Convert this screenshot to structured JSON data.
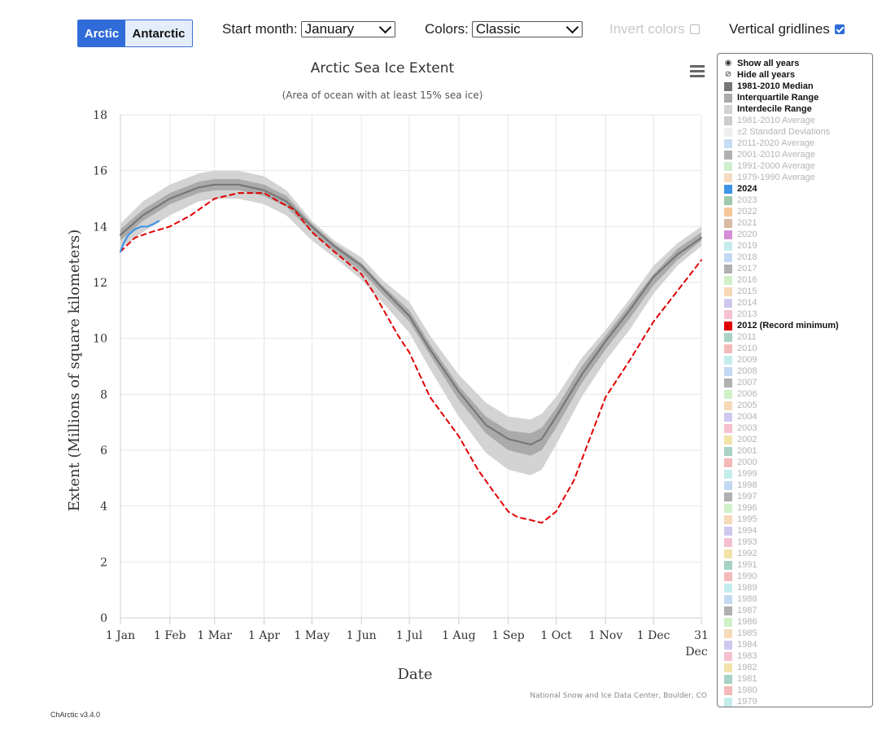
{
  "toolbar": {
    "region_buttons": [
      {
        "label": "Arctic",
        "active": true
      },
      {
        "label": "Antarctic",
        "active": false
      }
    ],
    "start_month_label": "Start month:",
    "start_month_value": "January",
    "colors_label": "Colors:",
    "colors_value": "Classic",
    "invert_label": "Invert colors",
    "invert_checked": false,
    "gridlines_label": "Vertical gridlines",
    "gridlines_checked": true
  },
  "legend": {
    "actions": [
      {
        "label": "Show all years",
        "icon": "eye-icon"
      },
      {
        "label": "Hide all years",
        "icon": "eye-slash-icon"
      }
    ],
    "items": [
      {
        "label": "1981-2010 Median",
        "color": "#777777",
        "active": true
      },
      {
        "label": "Interquartile Range",
        "color": "#aaaaaa",
        "active": true
      },
      {
        "label": "Interdecile Range",
        "color": "#d3d3d3",
        "active": true
      },
      {
        "label": "1981-2010 Average",
        "color": "#cccccc",
        "active": false
      },
      {
        "label": "±2 Standard Deviations",
        "color": "#eeeeee",
        "active": false
      },
      {
        "label": "2011-2020 Average",
        "color": "#c6dcf4",
        "active": false
      },
      {
        "label": "2001-2010 Average",
        "color": "#b0b0b0",
        "active": false
      },
      {
        "label": "1991-2000 Average",
        "color": "#cdeecd",
        "active": false
      },
      {
        "label": "1979-1990 Average",
        "color": "#f6dcc0",
        "active": false
      },
      {
        "label": "2024",
        "color": "#3f93e8",
        "active": true
      },
      {
        "label": "2023",
        "color": "#9ec9ac",
        "active": false
      },
      {
        "label": "2022",
        "color": "#f7c79a",
        "active": false
      },
      {
        "label": "2021",
        "color": "#d9b8a5",
        "active": false
      },
      {
        "label": "2020",
        "color": "#d58fd6",
        "active": false
      },
      {
        "label": "2019",
        "color": "#c5ecec",
        "active": false
      },
      {
        "label": "2018",
        "color": "#c3d9f2",
        "active": false
      },
      {
        "label": "2017",
        "color": "#b0b0b0",
        "active": false
      },
      {
        "label": "2016",
        "color": "#d0f0c8",
        "active": false
      },
      {
        "label": "2015",
        "color": "#f6d9b8",
        "active": false
      },
      {
        "label": "2014",
        "color": "#cfc9ef",
        "active": false
      },
      {
        "label": "2013",
        "color": "#f5c1cf",
        "active": false
      },
      {
        "label": "2012 (Record minimum)",
        "color": "#e00000",
        "active": true
      },
      {
        "label": "2011",
        "color": "#a8d2c4",
        "active": false
      },
      {
        "label": "2010",
        "color": "#f4b9b9",
        "active": false
      },
      {
        "label": "2009",
        "color": "#c5ecec",
        "active": false
      },
      {
        "label": "2008",
        "color": "#c3d9f2",
        "active": false
      },
      {
        "label": "2007",
        "color": "#b0b0b0",
        "active": false
      },
      {
        "label": "2006",
        "color": "#d0f0c8",
        "active": false
      },
      {
        "label": "2005",
        "color": "#f6d9b8",
        "active": false
      },
      {
        "label": "2004",
        "color": "#cfc9ef",
        "active": false
      },
      {
        "label": "2003",
        "color": "#f5c1cf",
        "active": false
      },
      {
        "label": "2002",
        "color": "#f2e3a8",
        "active": false
      },
      {
        "label": "2001",
        "color": "#a8d2c4",
        "active": false
      },
      {
        "label": "2000",
        "color": "#f4b9b9",
        "active": false
      },
      {
        "label": "1999",
        "color": "#c5ecec",
        "active": false
      },
      {
        "label": "1998",
        "color": "#c3d9f2",
        "active": false
      },
      {
        "label": "1997",
        "color": "#b0b0b0",
        "active": false
      },
      {
        "label": "1996",
        "color": "#d0f0c8",
        "active": false
      },
      {
        "label": "1995",
        "color": "#f6d9b8",
        "active": false
      },
      {
        "label": "1994",
        "color": "#cfc9ef",
        "active": false
      },
      {
        "label": "1993",
        "color": "#f5c1cf",
        "active": false
      },
      {
        "label": "1992",
        "color": "#f2e3a8",
        "active": false
      },
      {
        "label": "1991",
        "color": "#a8d2c4",
        "active": false
      },
      {
        "label": "1990",
        "color": "#f4b9b9",
        "active": false
      },
      {
        "label": "1989",
        "color": "#c5ecec",
        "active": false
      },
      {
        "label": "1988",
        "color": "#c3d9f2",
        "active": false
      },
      {
        "label": "1987",
        "color": "#b0b0b0",
        "active": false
      },
      {
        "label": "1986",
        "color": "#d0f0c8",
        "active": false
      },
      {
        "label": "1985",
        "color": "#f6d9b8",
        "active": false
      },
      {
        "label": "1984",
        "color": "#cfc9ef",
        "active": false
      },
      {
        "label": "1983",
        "color": "#f5c1cf",
        "active": false
      },
      {
        "label": "1982",
        "color": "#f2e3a8",
        "active": false
      },
      {
        "label": "1981",
        "color": "#a8d2c4",
        "active": false
      },
      {
        "label": "1980",
        "color": "#f4b9b9",
        "active": false
      },
      {
        "label": "1979",
        "color": "#c5ecec",
        "active": false
      }
    ]
  },
  "footer": {
    "credit": "National Snow and Ice Data Center, Boulder, CO",
    "version": "ChArctic v3.4.0"
  },
  "chart_data": {
    "type": "line",
    "title": "Arctic Sea Ice Extent",
    "subtitle": "(Area of ocean with at least 15% sea ice)",
    "xlabel": "Date",
    "ylabel": "Extent (Millions of square kilometers)",
    "ylim": [
      0,
      18
    ],
    "yticks": [
      0,
      2,
      4,
      6,
      8,
      10,
      12,
      14,
      16,
      18
    ],
    "xlim": [
      1,
      365
    ],
    "xticks": [
      {
        "day": 1,
        "label": "1 Jan"
      },
      {
        "day": 32,
        "label": "1 Feb"
      },
      {
        "day": 60,
        "label": "1 Mar"
      },
      {
        "day": 91,
        "label": "1 Apr"
      },
      {
        "day": 121,
        "label": "1 May"
      },
      {
        "day": 152,
        "label": "1 Jun"
      },
      {
        "day": 182,
        "label": "1 Jul"
      },
      {
        "day": 213,
        "label": "1 Aug"
      },
      {
        "day": 244,
        "label": "1 Sep"
      },
      {
        "day": 274,
        "label": "1 Oct"
      },
      {
        "day": 305,
        "label": "1 Nov"
      },
      {
        "day": 335,
        "label": "1 Dec"
      },
      {
        "day": 365,
        "label": "31",
        "label2": "Dec"
      }
    ],
    "vertical_gridlines": true,
    "bands": [
      {
        "name": "Interdecile Range",
        "color": "#d3d3d3",
        "x": [
          1,
          15,
          32,
          50,
          60,
          75,
          91,
          105,
          121,
          135,
          152,
          165,
          182,
          195,
          213,
          230,
          244,
          258,
          265,
          274,
          290,
          305,
          320,
          335,
          350,
          365
        ],
        "lower": [
          13.2,
          13.8,
          14.4,
          14.9,
          15.0,
          15.0,
          14.8,
          14.4,
          13.5,
          12.9,
          12.1,
          11.3,
          10.2,
          8.9,
          7.2,
          5.9,
          5.3,
          5.1,
          5.3,
          6.2,
          7.9,
          9.2,
          10.3,
          11.6,
          12.6,
          13.3
        ],
        "upper": [
          14.1,
          14.9,
          15.5,
          15.9,
          16.0,
          16.0,
          15.8,
          15.3,
          14.2,
          13.5,
          12.9,
          12.1,
          11.3,
          10.1,
          8.7,
          7.7,
          7.2,
          7.1,
          7.3,
          7.9,
          9.3,
          10.3,
          11.4,
          12.6,
          13.4,
          14.0
        ]
      },
      {
        "name": "Interquartile Range",
        "color": "#aaaaaa",
        "x": [
          1,
          15,
          32,
          50,
          60,
          75,
          91,
          105,
          121,
          135,
          152,
          165,
          182,
          195,
          213,
          230,
          244,
          258,
          265,
          274,
          290,
          305,
          320,
          335,
          350,
          365
        ],
        "lower": [
          13.5,
          14.2,
          14.8,
          15.2,
          15.3,
          15.3,
          15.1,
          14.7,
          13.8,
          13.1,
          12.4,
          11.6,
          10.6,
          9.4,
          7.8,
          6.6,
          6.0,
          5.8,
          6.0,
          6.8,
          8.4,
          9.6,
          10.7,
          11.9,
          12.8,
          13.5
        ],
        "upper": [
          13.9,
          14.6,
          15.2,
          15.6,
          15.7,
          15.7,
          15.5,
          15.1,
          14.1,
          13.4,
          12.7,
          11.9,
          11.0,
          9.8,
          8.3,
          7.2,
          6.7,
          6.6,
          6.8,
          7.5,
          9.0,
          10.1,
          11.2,
          12.3,
          13.2,
          13.8
        ]
      }
    ],
    "series": [
      {
        "name": "1981-2010 Median",
        "color": "#777777",
        "style": "solid",
        "x": [
          1,
          15,
          32,
          50,
          60,
          75,
          91,
          105,
          121,
          135,
          152,
          165,
          182,
          195,
          213,
          230,
          244,
          258,
          265,
          274,
          290,
          305,
          320,
          335,
          350,
          365
        ],
        "y": [
          13.7,
          14.4,
          15.0,
          15.4,
          15.5,
          15.5,
          15.3,
          14.9,
          14.0,
          13.3,
          12.6,
          11.8,
          10.8,
          9.6,
          8.1,
          6.9,
          6.4,
          6.2,
          6.4,
          7.2,
          8.7,
          9.9,
          11.0,
          12.2,
          13.0,
          13.6
        ]
      },
      {
        "name": "2012 (Record minimum)",
        "color": "#e00000",
        "style": "dashed",
        "x": [
          1,
          10,
          20,
          32,
          45,
          60,
          75,
          91,
          100,
          110,
          121,
          135,
          152,
          160,
          175,
          182,
          195,
          213,
          225,
          235,
          244,
          250,
          258,
          265,
          274,
          285,
          295,
          305,
          320,
          335,
          350,
          365
        ],
        "y": [
          13.1,
          13.6,
          13.8,
          14.0,
          14.4,
          15.0,
          15.2,
          15.2,
          14.9,
          14.6,
          13.8,
          13.1,
          12.3,
          11.6,
          10.1,
          9.5,
          7.9,
          6.5,
          5.3,
          4.5,
          3.8,
          3.6,
          3.5,
          3.4,
          3.8,
          4.9,
          6.4,
          7.9,
          9.2,
          10.6,
          11.7,
          12.8
        ]
      },
      {
        "name": "2024",
        "color": "#3f93e8",
        "style": "solid",
        "x": [
          1,
          3,
          6,
          10,
          14,
          18,
          22,
          25
        ],
        "y": [
          13.1,
          13.4,
          13.7,
          13.9,
          14.0,
          14.0,
          14.1,
          14.2
        ]
      }
    ]
  }
}
